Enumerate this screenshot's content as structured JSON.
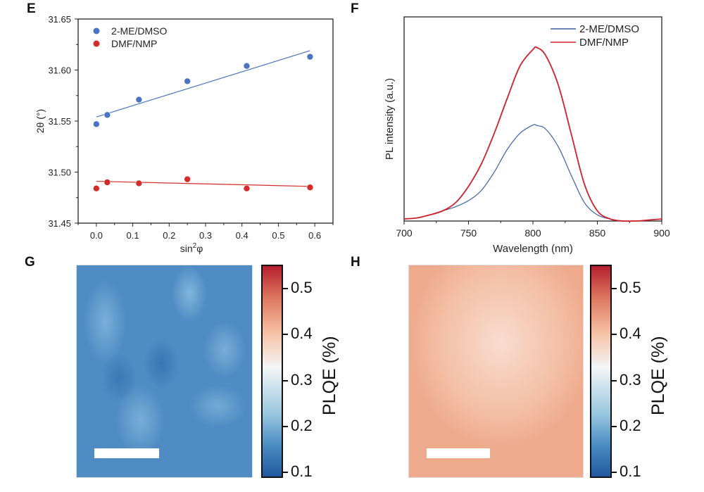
{
  "panels": {
    "e": "E",
    "f": "F",
    "g": "G",
    "h": "H"
  },
  "chart_data": [
    {
      "type": "scatter",
      "panel": "E",
      "xlabel": "sin²φ",
      "xlabel_base": "sin",
      "xlabel_sup": "2",
      "xlabel_tail": "φ",
      "ylabel": "2θ (°)",
      "xlim": [
        -0.05,
        0.65
      ],
      "ylim": [
        31.45,
        31.65
      ],
      "xticks": [
        "0.0",
        "0.1",
        "0.2",
        "0.3",
        "0.4",
        "0.5",
        "0.6"
      ],
      "yticks": [
        "31.45",
        "31.50",
        "31.55",
        "31.60",
        "31.65"
      ],
      "legend_position": "top-left",
      "series": [
        {
          "name": "2-ME/DMSO",
          "color": "#4a74c0",
          "x": [
            0,
            0.03,
            0.117,
            0.25,
            0.413,
            0.587
          ],
          "y": [
            31.547,
            31.556,
            31.571,
            31.589,
            31.604,
            31.613
          ],
          "fit": [
            [
              0,
              31.554
            ],
            [
              0.587,
              31.619
            ]
          ]
        },
        {
          "name": "DMF/NMP",
          "color": "#d42a2a",
          "x": [
            0,
            0.03,
            0.117,
            0.25,
            0.413,
            0.587
          ],
          "y": [
            31.484,
            31.49,
            31.489,
            31.493,
            31.484,
            31.485
          ],
          "fit": [
            [
              0,
              31.491
            ],
            [
              0.587,
              31.486
            ]
          ]
        }
      ]
    },
    {
      "type": "line",
      "panel": "F",
      "xlabel": "Wavelength (nm)",
      "ylabel": "PL intensity (a.u.)",
      "xlim": [
        700,
        900
      ],
      "ylim": [
        0,
        1
      ],
      "xticks": [
        "700",
        "750",
        "800",
        "850",
        "900"
      ],
      "legend_position": "top-right",
      "x": [
        700,
        710,
        720,
        730,
        740,
        750,
        760,
        770,
        780,
        790,
        800,
        803,
        810,
        820,
        830,
        840,
        850,
        860,
        870,
        880,
        890,
        900
      ],
      "series": [
        {
          "name": "2-ME/DMSO",
          "color": "#3d5fa8",
          "values": [
            0.01,
            0.015,
            0.03,
            0.05,
            0.07,
            0.1,
            0.15,
            0.24,
            0.35,
            0.43,
            0.47,
            0.468,
            0.45,
            0.36,
            0.22,
            0.09,
            0.03,
            0.01,
            0,
            0,
            0.005,
            0.01
          ]
        },
        {
          "name": "DMF/NMP",
          "color": "#d0202a",
          "values": [
            0.01,
            0.015,
            0.03,
            0.05,
            0.09,
            0.17,
            0.28,
            0.43,
            0.6,
            0.76,
            0.84,
            0.85,
            0.81,
            0.66,
            0.42,
            0.18,
            0.05,
            0.01,
            0,
            0,
            0.005,
            0.01
          ]
        }
      ]
    },
    {
      "type": "heatmap",
      "panel": "G",
      "colorbar_label": "PLQE (%)",
      "colorbar_ticks": [
        "0.5",
        "0.4",
        "0.3",
        "0.2",
        "0.1"
      ],
      "range": [
        0.09,
        0.55
      ]
    },
    {
      "type": "heatmap",
      "panel": "H",
      "colorbar_label": "PLQE (%)",
      "colorbar_ticks": [
        "0.5",
        "0.4",
        "0.3",
        "0.2",
        "0.1"
      ],
      "range": [
        0.09,
        0.55
      ]
    }
  ]
}
